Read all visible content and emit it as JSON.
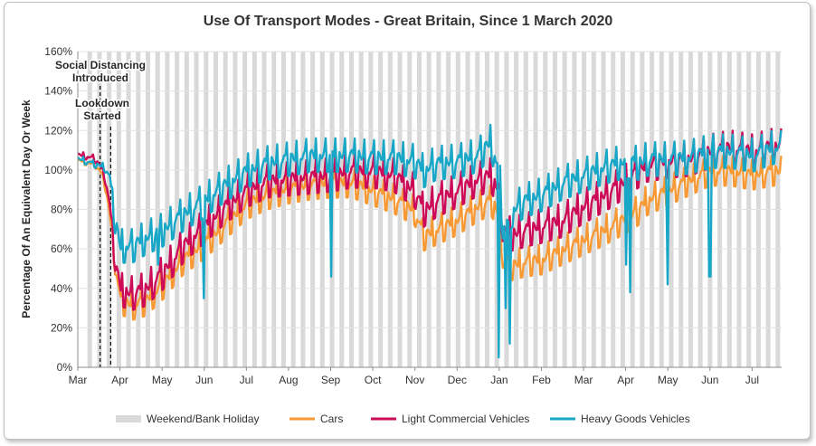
{
  "chart_data": {
    "type": "line",
    "title": "Use Of Transport Modes - Great Britain, Since 1 March 2020",
    "ylabel": "Percentage Of An Equivalent Day Or Week",
    "xlabel": "",
    "ylim": [
      0,
      160
    ],
    "y_ticks": [
      "0%",
      "20%",
      "40%",
      "60%",
      "80%",
      "100%",
      "120%",
      "140%",
      "160%"
    ],
    "x_tick_labels": [
      "Mar",
      "Apr",
      "May",
      "Jun",
      "Jul",
      "Aug",
      "Sep",
      "Oct",
      "Nov",
      "Dec",
      "Jan",
      "Feb",
      "Mar",
      "Apr",
      "May",
      "Jun",
      "Jul"
    ],
    "x_tick_months": [
      0,
      1,
      2,
      3,
      4,
      5,
      6,
      7,
      8,
      9,
      10,
      11,
      12,
      13,
      14,
      15,
      16
    ],
    "x_range_months": [
      0,
      16.7
    ],
    "grid": "horizontal",
    "legend_position": "bottom",
    "annotations": [
      {
        "text_lines": [
          "Social Distancing",
          "Introduced"
        ],
        "x_month": 0.53
      },
      {
        "text_lines": [
          "Lookdown",
          "Started"
        ],
        "x_month": 0.78
      }
    ],
    "shading": {
      "name": "Weekend/Bank Holiday",
      "color": "#d9d9d9",
      "start_month": 0.23,
      "period_weeks": 1
    },
    "series": [
      {
        "name": "Cars",
        "color": "#f79a36",
        "x_months": [
          0,
          0.4,
          0.6,
          0.75,
          0.85,
          1.0,
          1.3,
          1.6,
          2.0,
          2.5,
          3.0,
          3.5,
          4.0,
          4.5,
          5.0,
          5.5,
          6.0,
          6.5,
          7.0,
          7.5,
          8.0,
          8.2,
          8.5,
          9.0,
          9.5,
          9.8,
          10.0,
          10.1,
          10.3,
          10.6,
          11.0,
          11.5,
          12.0,
          12.5,
          13.0,
          13.3,
          13.5,
          14.0,
          14.5,
          15.0,
          15.5,
          16.0,
          16.5
        ],
        "values": [
          105,
          103,
          97,
          80,
          60,
          35,
          32,
          34,
          42,
          55,
          63,
          73,
          83,
          88,
          91,
          93,
          94,
          94,
          90,
          86,
          80,
          67,
          70,
          75,
          82,
          85,
          78,
          55,
          52,
          54,
          55,
          60,
          65,
          70,
          76,
          80,
          85,
          90,
          95,
          100,
          100,
          98,
          100
        ],
        "amplitude": 8
      },
      {
        "name": "Light Commercial Vehicles",
        "color": "#cc0a57",
        "x_months": [
          0,
          0.4,
          0.6,
          0.75,
          0.85,
          1.0,
          1.3,
          1.6,
          2.0,
          2.5,
          3.0,
          3.5,
          4.0,
          4.5,
          5.0,
          5.5,
          6.0,
          6.5,
          7.0,
          7.5,
          8.0,
          8.2,
          8.5,
          9.0,
          9.5,
          9.8,
          10.0,
          10.1,
          10.3,
          10.6,
          11.0,
          11.5,
          12.0,
          12.5,
          13.0,
          13.3,
          13.5,
          14.0,
          14.5,
          15.0,
          15.5,
          16.0,
          16.5
        ],
        "values": [
          108,
          106,
          100,
          85,
          62,
          40,
          38,
          40,
          48,
          62,
          72,
          82,
          90,
          95,
          96,
          97,
          98,
          100,
          100,
          98,
          90,
          80,
          85,
          90,
          96,
          98,
          90,
          70,
          68,
          70,
          72,
          75,
          82,
          88,
          95,
          100,
          103,
          105,
          106,
          110,
          112,
          110,
          113
        ],
        "amplitude": 9
      },
      {
        "name": "Heavy Goods Vehicles",
        "color": "#19a7c8",
        "x_months": [
          0,
          0.4,
          0.6,
          0.75,
          0.85,
          1.0,
          1.3,
          1.6,
          2.0,
          2.5,
          3.0,
          3.5,
          4.0,
          4.5,
          5.0,
          5.5,
          6.0,
          6.5,
          7.0,
          7.5,
          8.0,
          8.2,
          8.5,
          9.0,
          9.5,
          9.8,
          10.0,
          10.1,
          10.3,
          10.6,
          11.0,
          11.5,
          12.0,
          12.5,
          13.0,
          13.3,
          13.5,
          14.0,
          14.5,
          15.0,
          15.5,
          16.0,
          16.5
        ],
        "values": [
          106,
          103,
          102,
          98,
          80,
          62,
          62,
          66,
          70,
          78,
          85,
          93,
          100,
          104,
          106,
          108,
          108,
          108,
          107,
          107,
          105,
          100,
          104,
          105,
          108,
          115,
          100,
          70,
          80,
          85,
          88,
          94,
          98,
          102,
          105,
          104,
          106,
          106,
          107,
          110,
          110,
          108,
          112
        ],
        "amplitude": 9,
        "dips": [
          [
            1.9,
            52
          ],
          [
            3.0,
            35
          ],
          [
            6.0,
            46
          ],
          [
            10.0,
            5
          ],
          [
            10.15,
            30
          ],
          [
            10.25,
            12
          ],
          [
            13.0,
            52
          ],
          [
            13.1,
            38
          ],
          [
            14.0,
            42
          ],
          [
            15.0,
            46
          ]
        ]
      }
    ]
  }
}
